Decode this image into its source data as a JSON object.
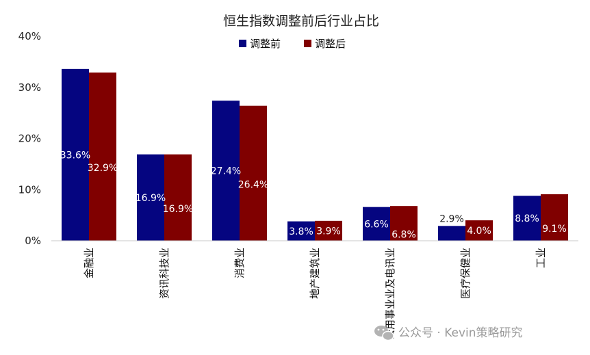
{
  "chart_data": {
    "type": "bar",
    "title": "恒生指数调整前后行业占比",
    "xlabel": "",
    "ylabel": "",
    "ylim": [
      0,
      40
    ],
    "yticks": [
      "0%",
      "10%",
      "20%",
      "30%",
      "40%"
    ],
    "categories": [
      "金融业",
      "资讯科技业",
      "消费业",
      "地产建筑业",
      "公用事业业及电讯业",
      "医疗保健业",
      "工业"
    ],
    "series": [
      {
        "name": "调整前",
        "color": "#050580",
        "values": [
          33.6,
          16.9,
          27.4,
          3.8,
          6.6,
          2.9,
          8.8
        ],
        "labels": [
          "33.6%",
          "16.9%",
          "27.4%",
          "3.8%",
          "6.6%",
          "2.9%",
          "8.8%"
        ]
      },
      {
        "name": "调整后",
        "color": "#800000",
        "values": [
          32.9,
          16.9,
          26.4,
          3.9,
          6.8,
          4.0,
          9.1
        ],
        "labels": [
          "32.9%",
          "16.9%",
          "26.4%",
          "3.9%",
          "6.8%",
          "4.0%",
          "9.1%"
        ]
      }
    ],
    "grid": false,
    "legend": "top-center"
  },
  "watermark": {
    "text": "公众号 · Kevin策略研究",
    "icon": "wechat-icon"
  }
}
